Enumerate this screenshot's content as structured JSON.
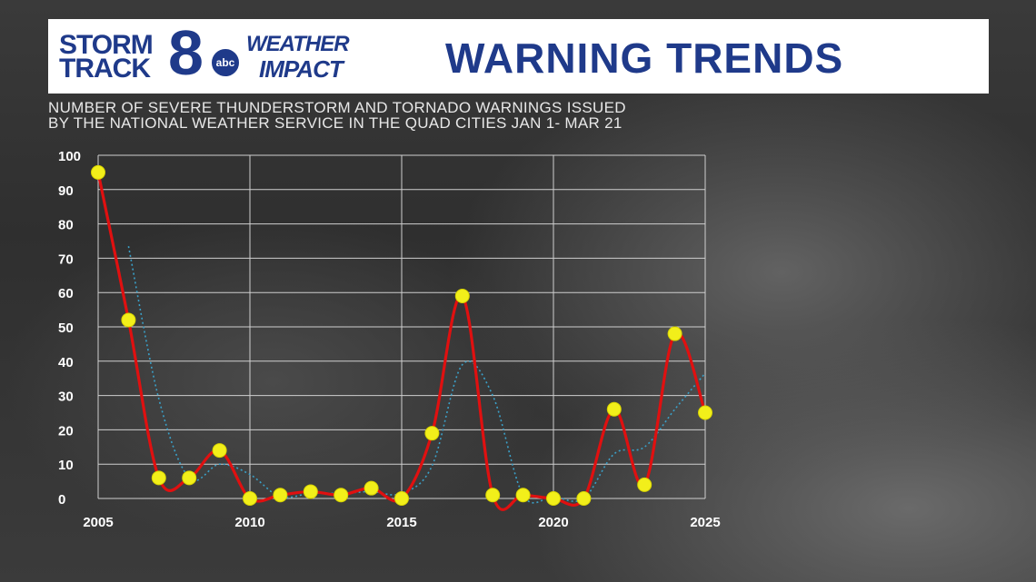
{
  "header": {
    "logo": {
      "storm": "STORM",
      "track": "TRACK",
      "eight": "8",
      "abc": "abc",
      "weather": "WEATHER",
      "impact": "IMPACT"
    },
    "title": "WARNING TRENDS"
  },
  "subtitle_lines": [
    "NUMBER OF SEVERE THUNDERSTORM AND TORNADO WARNINGS ISSUED",
    "BY THE NATIONAL WEATHER SERVICE IN THE QUAD CITIES JAN 1- MAR 21"
  ],
  "colors": {
    "line": "#e01010",
    "marker": "#f2ef1a",
    "trend": "#3aa0c8",
    "grid": "#cfcfcf",
    "title": "#1f3a8a"
  },
  "chart_data": {
    "type": "line",
    "x": [
      2005,
      2006,
      2007,
      2008,
      2009,
      2010,
      2011,
      2012,
      2013,
      2014,
      2015,
      2016,
      2017,
      2018,
      2019,
      2020,
      2021,
      2022,
      2023,
      2024,
      2025
    ],
    "series": [
      {
        "values": [
          95,
          52,
          6,
          6,
          14,
          0,
          1,
          2,
          1,
          3,
          0,
          19,
          59,
          1,
          1,
          0,
          0,
          26,
          4,
          48,
          25
        ]
      }
    ],
    "trend_line": {
      "x": [
        2006,
        2007,
        2008,
        2009,
        2010,
        2011,
        2012,
        2013,
        2014,
        2015,
        2016,
        2017,
        2018,
        2019,
        2020,
        2021,
        2022,
        2023,
        2024,
        2025
      ],
      "values": [
        73.5,
        29,
        6,
        10,
        7,
        0.5,
        1.5,
        1.5,
        2,
        1.5,
        9.5,
        39,
        30,
        1,
        0.5,
        0,
        13,
        15,
        26,
        36.5
      ]
    },
    "xticks": [
      2005,
      2010,
      2015,
      2020,
      2025
    ],
    "yticks": [
      0,
      10,
      20,
      30,
      40,
      50,
      60,
      70,
      80,
      90,
      100
    ],
    "xlim": [
      2005,
      2025
    ],
    "ylim": [
      0,
      100
    ],
    "grid": true,
    "legend": "none"
  }
}
